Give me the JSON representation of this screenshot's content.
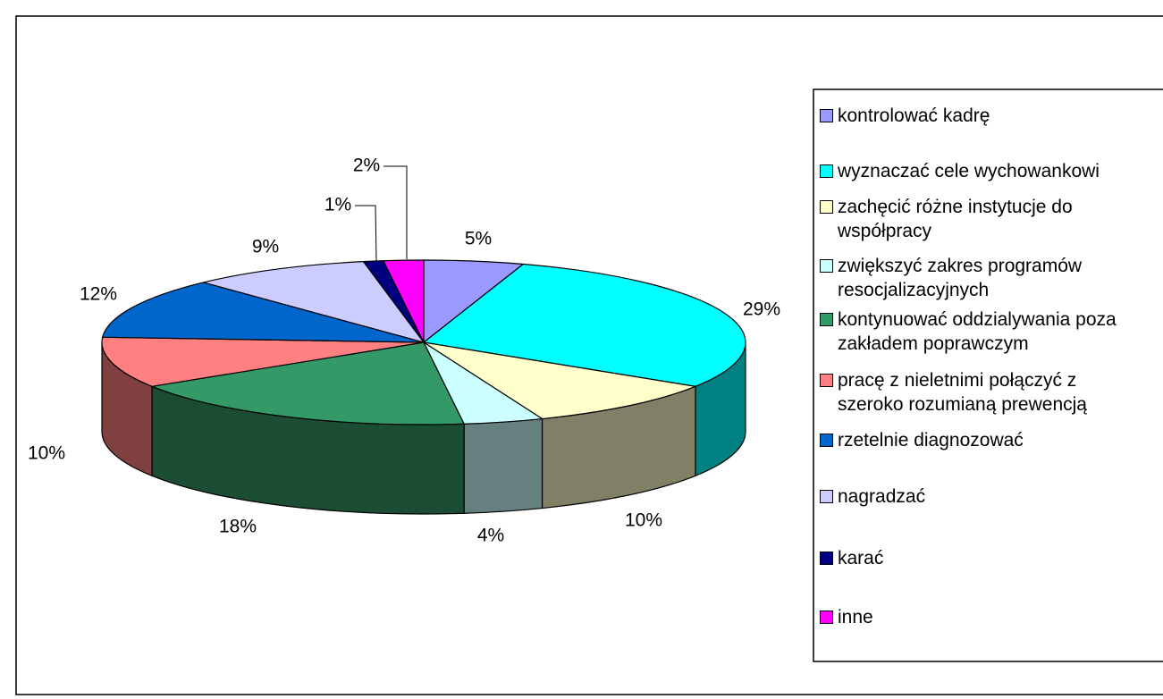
{
  "chart_data": {
    "type": "pie",
    "categories": [
      "kontrolować kadrę",
      "wyznaczać cele wychowankowi",
      "zachęcić różne instytucje do współpracy",
      "zwiększyć zakres programów resocjalizacyjnych",
      "kontynuować oddzialywania poza zakładem poprawczym",
      "pracę z nieletnimi połączyć z szeroko rozumianą prewencją",
      "rzetelnie diagnozować",
      "nagradzać",
      "karać",
      "inne"
    ],
    "values": [
      5,
      29,
      10,
      4,
      18,
      10,
      12,
      9,
      1,
      2
    ],
    "value_labels": [
      "5%",
      "29%",
      "10%",
      "4%",
      "18%",
      "10%",
      "12%",
      "9%",
      "1%",
      "2%"
    ],
    "colors": [
      "#9999ff",
      "#00ffff",
      "#ffffcc",
      "#ccffff",
      "#339966",
      "#ff8080",
      "#0066cc",
      "#ccccff",
      "#000080",
      "#ff00ff"
    ],
    "legend": "right"
  }
}
